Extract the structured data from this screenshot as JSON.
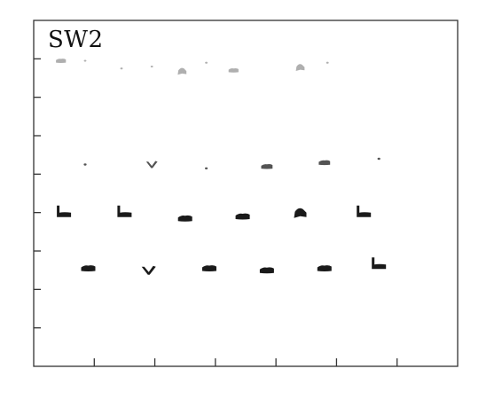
{
  "panel": {
    "label": "SW2"
  },
  "chart_data": {
    "type": "scatter",
    "title": "SW2",
    "xlabel": "",
    "ylabel": "",
    "xlim": [
      0,
      7
    ],
    "ylim": [
      0,
      9
    ],
    "x_ticks": [
      1,
      2,
      3,
      4,
      5,
      6
    ],
    "y_ticks": [
      1,
      2,
      3,
      4,
      5,
      6,
      7,
      8
    ],
    "grid": false,
    "legend": "none",
    "color": "#1a1a1a",
    "series": [
      {
        "intensity": "faint",
        "points": [
          {
            "x": 0.45,
            "y": 7.95,
            "shape": "flat"
          },
          {
            "x": 0.85,
            "y": 7.95,
            "shape": "dot"
          },
          {
            "x": 1.45,
            "y": 7.75,
            "shape": "dot"
          },
          {
            "x": 1.95,
            "y": 7.8,
            "shape": "dot"
          },
          {
            "x": 2.45,
            "y": 7.65,
            "shape": "hump"
          },
          {
            "x": 2.85,
            "y": 7.9,
            "shape": "dot"
          },
          {
            "x": 3.3,
            "y": 7.7,
            "shape": "flat"
          },
          {
            "x": 4.4,
            "y": 7.75,
            "shape": "hump"
          },
          {
            "x": 4.85,
            "y": 7.9,
            "shape": "dot"
          }
        ]
      },
      {
        "intensity": "light",
        "points": [
          {
            "x": 0.85,
            "y": 5.25,
            "shape": "dot"
          },
          {
            "x": 1.95,
            "y": 5.25,
            "shape": "v"
          },
          {
            "x": 2.85,
            "y": 5.15,
            "shape": "dot"
          },
          {
            "x": 3.85,
            "y": 5.2,
            "shape": "flat"
          },
          {
            "x": 4.8,
            "y": 5.3,
            "shape": "flat"
          },
          {
            "x": 5.7,
            "y": 5.4,
            "shape": "dot"
          }
        ]
      },
      {
        "intensity": "strong",
        "points": [
          {
            "x": 0.5,
            "y": 3.95,
            "shape": "hook"
          },
          {
            "x": 1.5,
            "y": 3.95,
            "shape": "hook"
          },
          {
            "x": 2.5,
            "y": 3.85,
            "shape": "flat"
          },
          {
            "x": 3.45,
            "y": 3.9,
            "shape": "flat"
          },
          {
            "x": 4.4,
            "y": 3.95,
            "shape": "hump"
          },
          {
            "x": 5.45,
            "y": 3.95,
            "shape": "hook"
          }
        ]
      },
      {
        "intensity": "strong",
        "points": [
          {
            "x": 0.9,
            "y": 2.55,
            "shape": "flat"
          },
          {
            "x": 1.9,
            "y": 2.5,
            "shape": "v"
          },
          {
            "x": 2.9,
            "y": 2.55,
            "shape": "flat"
          },
          {
            "x": 3.85,
            "y": 2.5,
            "shape": "flat"
          },
          {
            "x": 4.8,
            "y": 2.55,
            "shape": "flat"
          },
          {
            "x": 5.7,
            "y": 2.6,
            "shape": "hook"
          }
        ]
      }
    ]
  }
}
